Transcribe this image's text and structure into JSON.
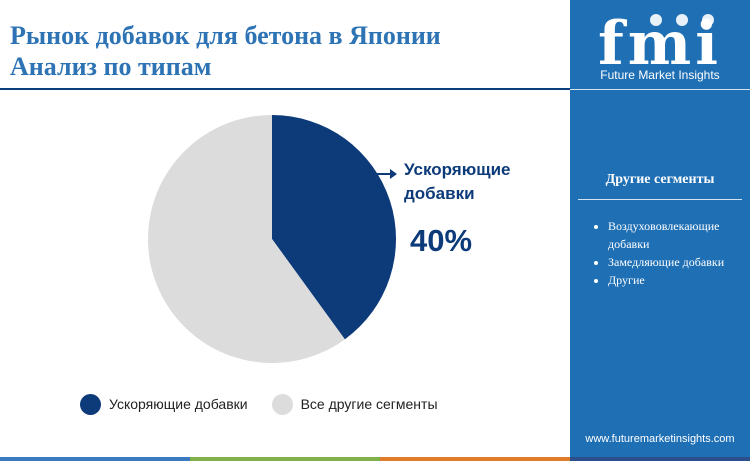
{
  "header": {
    "title_line1": "Рынок добавок для бетона в Японии",
    "title_line2": "Анализ по типам"
  },
  "brand": {
    "logo_text": "fmi",
    "name": "Future Market Insights",
    "website": "www.futuremarketinsights.com"
  },
  "sidebar": {
    "title": "Другие сегменты",
    "items": [
      "Воздухововлекающие добавки",
      "Замедляющие добавки",
      "Другие"
    ]
  },
  "callout": {
    "label_line1": "Ускоряющие",
    "label_line2": "добавки",
    "value_text": "40%"
  },
  "chart_data": {
    "type": "pie",
    "categories": [
      "Ускоряющие добавки",
      "Все другие сегменты"
    ],
    "values": [
      40,
      60
    ],
    "unit": "%",
    "colors": [
      "#0d3b7a",
      "#dcdcdc"
    ],
    "legend_position": "bottom"
  },
  "legend": [
    {
      "label": "Ускоряющие добавки",
      "color": "#0d3b7a"
    },
    {
      "label": "Все другие сегменты",
      "color": "#dcdcdc"
    }
  ],
  "colors": {
    "sidebar": "#1f6fb5",
    "title": "#2e74b5",
    "bottom_bar": [
      "#3a7bbf",
      "#7fb04a",
      "#e07b2a",
      "#2b4f8c"
    ]
  }
}
